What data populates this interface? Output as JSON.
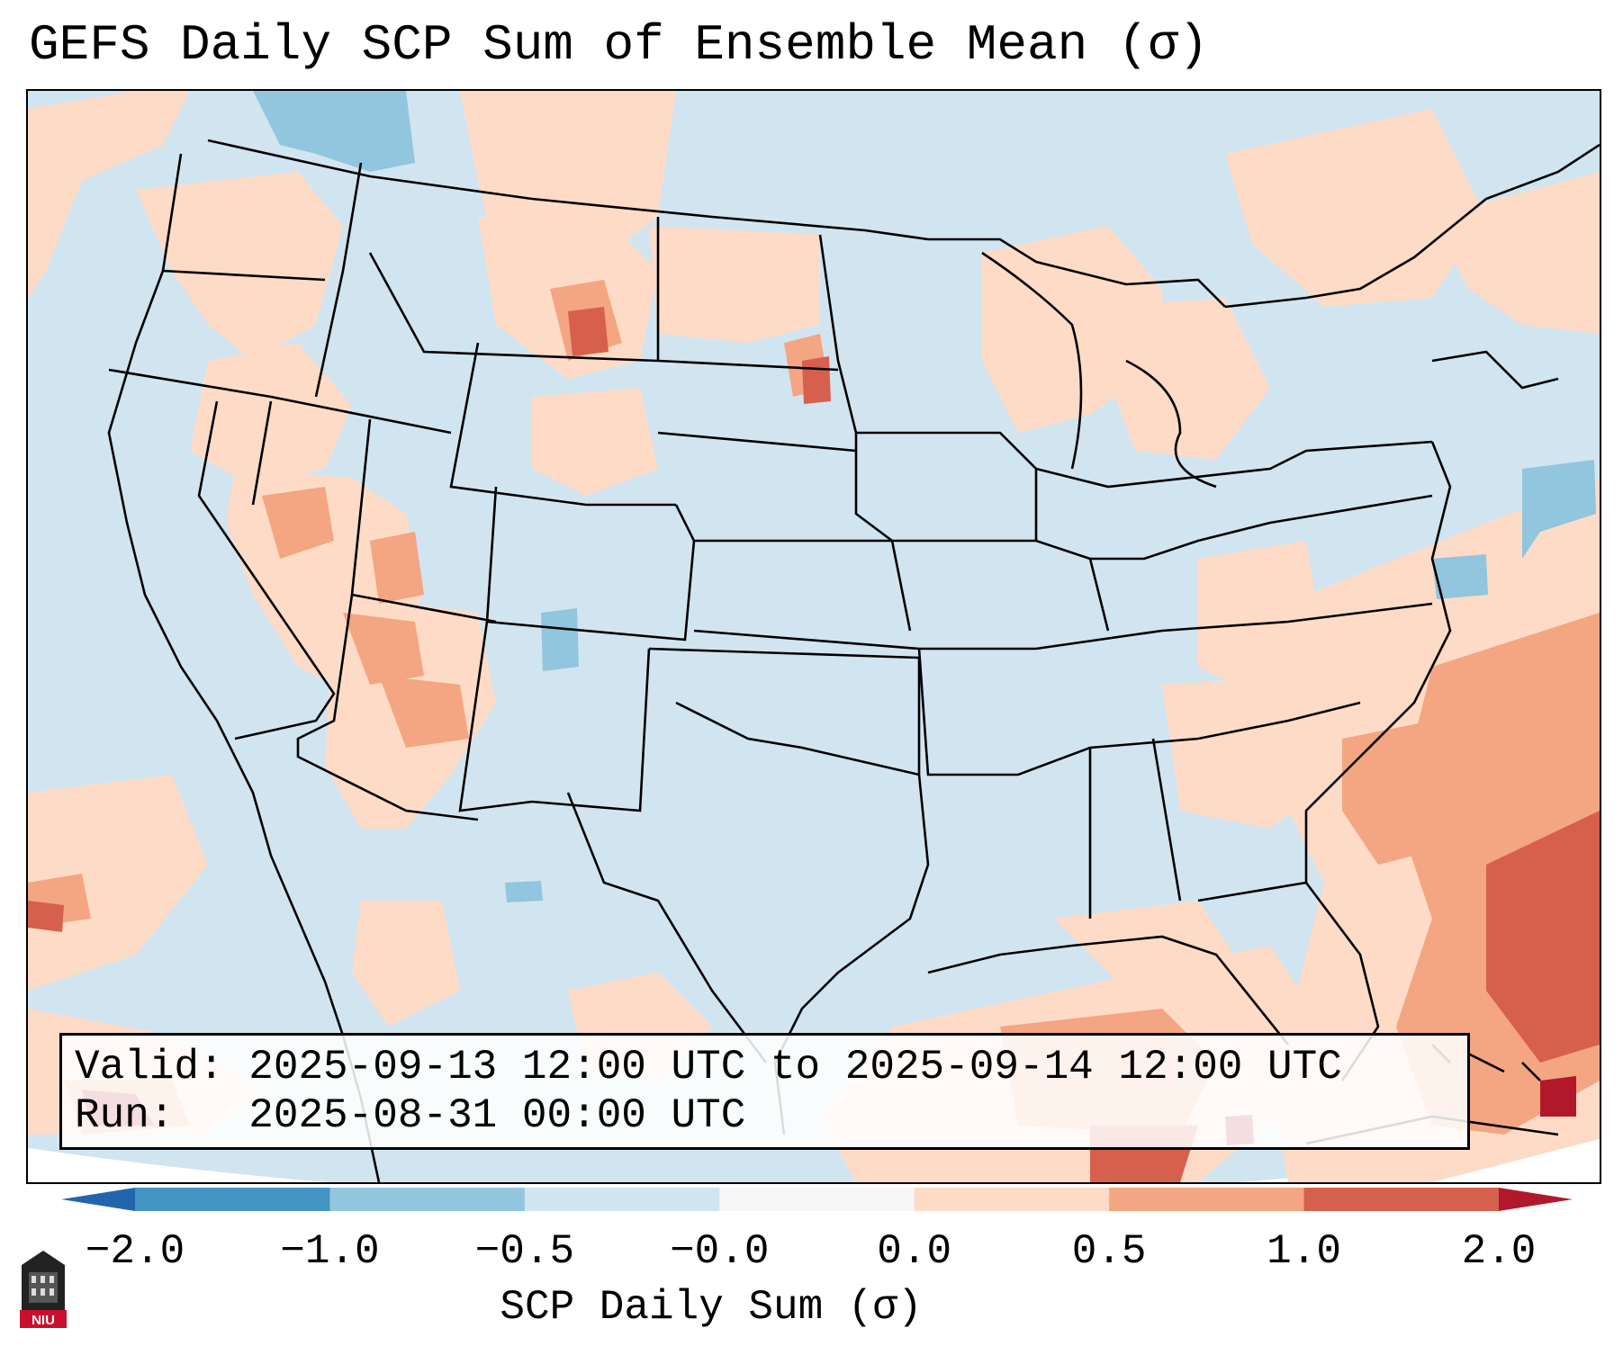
{
  "title": "GEFS Daily SCP Sum of Ensemble Mean (σ)",
  "info": {
    "valid_line": "Valid: 2025-09-13 12:00 UTC to 2025-09-14 12:00 UTC",
    "run_line": "Run:   2025-08-31 00:00 UTC"
  },
  "colorbar": {
    "label": "SCP Daily Sum (σ)",
    "ticks": [
      "−2.0",
      "−1.0",
      "−0.5",
      "−0.0",
      "0.0",
      "0.5",
      "1.0",
      "2.0"
    ],
    "colors": [
      "#4393c3",
      "#92c5de",
      "#d1e5f0",
      "#f7f7f7",
      "#fddbc7",
      "#f4a582",
      "#d6604d"
    ],
    "under_color": "#2166ac",
    "over_color": "#b2182b"
  },
  "map": {
    "background_color": "#d1e5f0",
    "positive_color": "#fddbc7",
    "moderate_color": "#f4a582",
    "strong_color": "#d6604d",
    "extreme_color": "#b2182b",
    "negative_color": "#92c5de"
  },
  "logo": {
    "text": "NIU",
    "icon": "university-tower-icon"
  }
}
